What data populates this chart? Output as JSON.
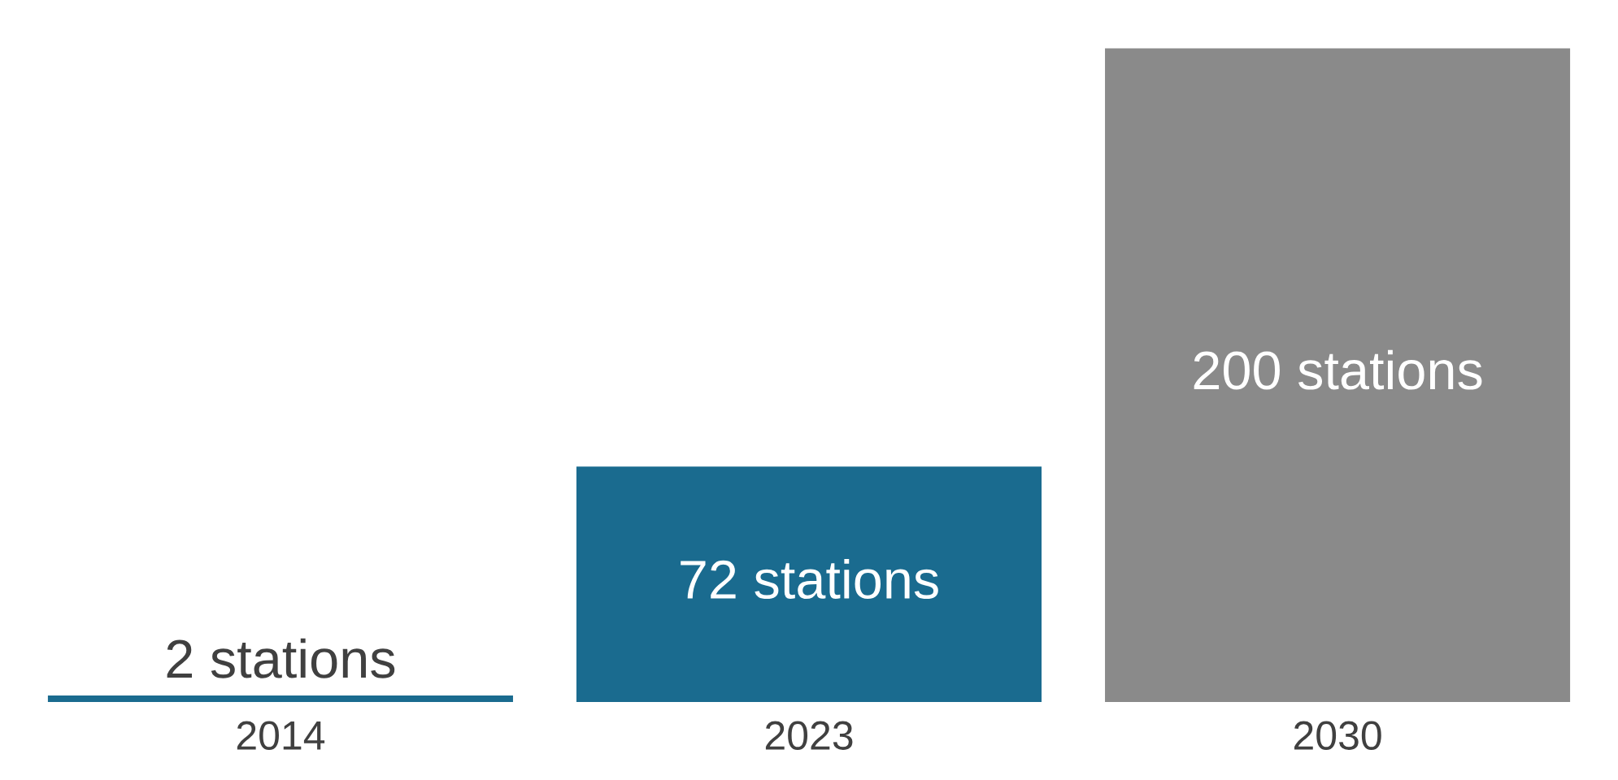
{
  "chart_data": {
    "type": "bar",
    "categories": [
      "2014",
      "2023",
      "2030"
    ],
    "values": [
      2,
      72,
      200
    ],
    "colors": [
      "#1a6b8f",
      "#1a6b8f",
      "#8a8a8a"
    ],
    "value_labels": [
      "2 stations",
      "72 stations",
      "200 stations"
    ]
  }
}
